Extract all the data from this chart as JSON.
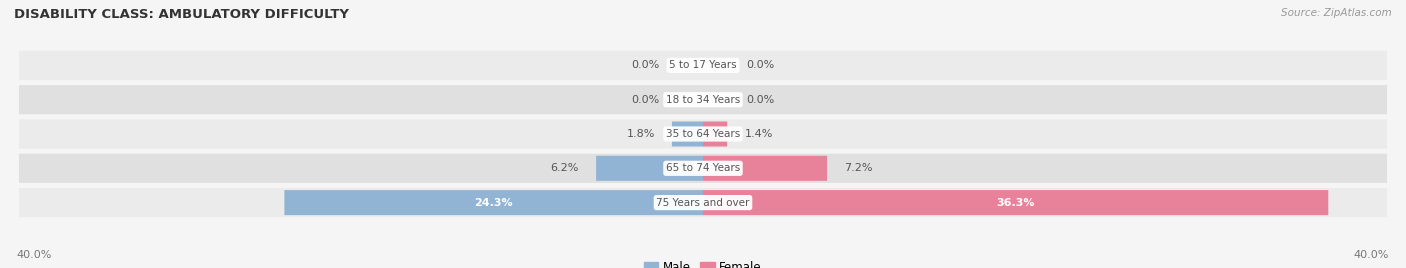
{
  "title": "DISABILITY CLASS: AMBULATORY DIFFICULTY",
  "source": "Source: ZipAtlas.com",
  "categories": [
    "5 to 17 Years",
    "18 to 34 Years",
    "35 to 64 Years",
    "65 to 74 Years",
    "75 Years and over"
  ],
  "male_values": [
    0.0,
    0.0,
    1.8,
    6.2,
    24.3
  ],
  "female_values": [
    0.0,
    0.0,
    1.4,
    7.2,
    36.3
  ],
  "male_color": "#92b4d4",
  "female_color": "#e8829a",
  "row_bg_color_light": "#ebebeb",
  "row_bg_color_dark": "#e0e0e0",
  "fig_bg_color": "#f5f5f5",
  "axis_max": 40.0,
  "label_color": "#555555",
  "title_color": "#333333",
  "source_color": "#999999",
  "legend_male_color": "#92b4d4",
  "legend_female_color": "#e8829a",
  "axis_label_color": "#777777",
  "value_label_inside_color": "#ffffff",
  "value_label_outside_color": "#555555"
}
